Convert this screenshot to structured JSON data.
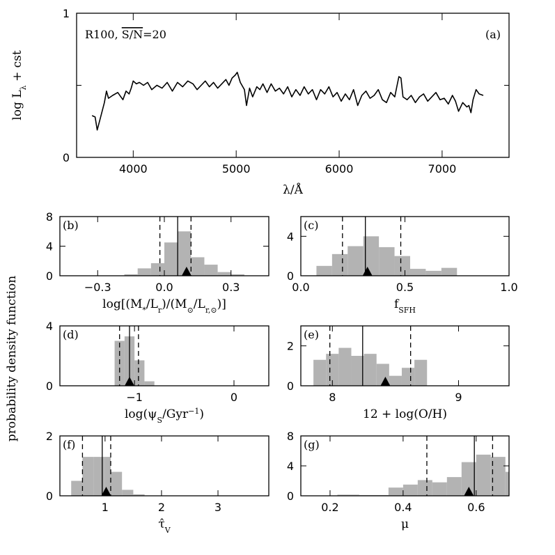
{
  "chart_data": [
    {
      "id": "a",
      "type": "line",
      "label": "(a)",
      "annotation": "R100, S/N=20",
      "annotation_prefix": "R100, ",
      "annotation_overlined": "S/N",
      "annotation_suffix": "=20",
      "xlabel": "λ/Å",
      "ylabel": "log L",
      "ylabel_subscript": "λ",
      "ylabel_suffix": " + cst",
      "xlim": [
        3450,
        7650
      ],
      "ylim": [
        0,
        1
      ],
      "xticks": [
        4000,
        5000,
        6000,
        7000
      ],
      "yticks": [
        0,
        1
      ],
      "yticks_minor": [
        0.5
      ],
      "x": [
        3600,
        3630,
        3650,
        3680,
        3720,
        3740,
        3760,
        3800,
        3850,
        3900,
        3930,
        3960,
        3980,
        4000,
        4030,
        4060,
        4100,
        4140,
        4180,
        4230,
        4280,
        4330,
        4380,
        4430,
        4480,
        4530,
        4580,
        4620,
        4660,
        4700,
        4740,
        4780,
        4820,
        4860,
        4900,
        4930,
        4960,
        4990,
        5010,
        5040,
        5080,
        5100,
        5130,
        5160,
        5200,
        5230,
        5260,
        5300,
        5340,
        5380,
        5420,
        5460,
        5500,
        5540,
        5580,
        5620,
        5660,
        5700,
        5740,
        5780,
        5820,
        5860,
        5900,
        5940,
        5980,
        6020,
        6060,
        6100,
        6140,
        6180,
        6220,
        6260,
        6300,
        6340,
        6380,
        6420,
        6460,
        6500,
        6540,
        6560,
        6580,
        6600,
        6620,
        6660,
        6700,
        6740,
        6780,
        6820,
        6860,
        6900,
        6940,
        6980,
        7020,
        7060,
        7100,
        7130,
        7160,
        7200,
        7240,
        7260,
        7280,
        7300,
        7330,
        7360,
        7400
      ],
      "y": [
        0.29,
        0.28,
        0.19,
        0.27,
        0.38,
        0.46,
        0.41,
        0.43,
        0.45,
        0.4,
        0.46,
        0.44,
        0.48,
        0.53,
        0.51,
        0.52,
        0.5,
        0.52,
        0.47,
        0.5,
        0.48,
        0.52,
        0.46,
        0.52,
        0.49,
        0.53,
        0.51,
        0.47,
        0.5,
        0.53,
        0.49,
        0.52,
        0.48,
        0.51,
        0.54,
        0.5,
        0.55,
        0.57,
        0.59,
        0.52,
        0.47,
        0.36,
        0.48,
        0.42,
        0.49,
        0.47,
        0.51,
        0.45,
        0.51,
        0.46,
        0.48,
        0.44,
        0.49,
        0.42,
        0.47,
        0.43,
        0.49,
        0.44,
        0.47,
        0.4,
        0.47,
        0.44,
        0.49,
        0.42,
        0.45,
        0.39,
        0.44,
        0.4,
        0.47,
        0.36,
        0.43,
        0.46,
        0.41,
        0.43,
        0.47,
        0.4,
        0.38,
        0.45,
        0.42,
        0.49,
        0.56,
        0.55,
        0.42,
        0.4,
        0.43,
        0.38,
        0.42,
        0.44,
        0.39,
        0.42,
        0.45,
        0.4,
        0.41,
        0.37,
        0.43,
        0.39,
        0.32,
        0.38,
        0.35,
        0.36,
        0.31,
        0.4,
        0.47,
        0.44,
        0.43
      ]
    },
    {
      "id": "b",
      "type": "bar",
      "label": "(b)",
      "xlabel": "log[(M*/Lr)/(M⊙/Lr,⊙)]",
      "xlabel_parts": {
        "pre": "log[(M",
        "sub1": "*",
        "mid1": "/L",
        "sub2": "r",
        "mid2": ")/(M",
        "sub3": "⊙",
        "mid3": "/L",
        "sub4": "r,⊙",
        "post": ")]"
      },
      "xlim": [
        -0.47,
        0.47
      ],
      "ylim": [
        0,
        8
      ],
      "xticks": [
        -0.3,
        0.0,
        0.3
      ],
      "xticklabels": [
        "−0.3",
        "0.0",
        "0.3"
      ],
      "yticks": [
        0,
        4,
        8
      ],
      "bin_edges": [
        -0.18,
        -0.12,
        -0.06,
        0.0,
        0.06,
        0.12,
        0.18,
        0.24,
        0.3,
        0.36
      ],
      "values": [
        0.2,
        1.0,
        1.7,
        4.5,
        6.0,
        2.5,
        1.5,
        0.5,
        0.2
      ],
      "median": 0.06,
      "percentile_lines": [
        -0.02,
        0.12
      ],
      "input_value": 0.1
    },
    {
      "id": "c",
      "type": "bar",
      "label": "(c)",
      "xlabel": "fSFH",
      "xlabel_main": "f",
      "xlabel_sub": "SFH",
      "xlim": [
        0,
        1
      ],
      "ylim": [
        0,
        6
      ],
      "xticks": [
        0.0,
        0.5,
        1.0
      ],
      "xticklabels": [
        "0.0",
        "0.5",
        "1.0"
      ],
      "yticks": [
        0,
        4
      ],
      "bin_edges": [
        0.075,
        0.15,
        0.225,
        0.3,
        0.375,
        0.45,
        0.525,
        0.6,
        0.675,
        0.75
      ],
      "values": [
        1.0,
        2.2,
        3.0,
        4.0,
        2.9,
        2.0,
        0.7,
        0.5,
        0.8
      ],
      "median": 0.31,
      "percentile_lines": [
        0.2,
        0.48
      ],
      "input_value": 0.32
    },
    {
      "id": "d",
      "type": "bar",
      "label": "(d)",
      "xlabel": "log(ψS/Gyr⁻¹)",
      "xlabel_parts": {
        "pre": "log(ψ",
        "sub": "S",
        "mid": "/Gyr",
        "sup": "−1",
        "post": ")"
      },
      "xlim": [
        -1.75,
        0.35
      ],
      "ylim": [
        0,
        4
      ],
      "xticks": [
        -1,
        0
      ],
      "xticklabels": [
        "−1",
        "0"
      ],
      "yticks": [
        0,
        4
      ],
      "bin_edges": [
        -1.2,
        -1.1,
        -1.0,
        -0.9,
        -0.8
      ],
      "values": [
        3.0,
        3.3,
        1.7,
        0.3
      ],
      "median": -1.05,
      "percentile_lines": [
        -1.15,
        -0.96
      ],
      "input_value": -1.05
    },
    {
      "id": "e",
      "type": "bar",
      "label": "(e)",
      "xlabel": "12 + log(O/H)",
      "xlim": [
        7.75,
        9.4
      ],
      "ylim": [
        0,
        3
      ],
      "xticks": [
        8,
        9
      ],
      "xticklabels": [
        "8",
        "9"
      ],
      "yticks": [
        0,
        2
      ],
      "bin_edges": [
        7.85,
        7.95,
        8.05,
        8.15,
        8.25,
        8.35,
        8.45,
        8.55,
        8.65,
        8.75
      ],
      "values": [
        1.3,
        1.6,
        1.9,
        1.5,
        1.6,
        1.1,
        0.5,
        0.9,
        1.3
      ],
      "median": 8.24,
      "percentile_lines": [
        7.98,
        8.62
      ],
      "input_value": 8.42
    },
    {
      "id": "f",
      "type": "bar",
      "label": "(f)",
      "xlabel": "τ̂V",
      "xlabel_main": "τ̂",
      "xlabel_sub": "V",
      "xlim": [
        0.2,
        3.9
      ],
      "ylim": [
        0,
        2
      ],
      "xticks": [
        1,
        2,
        3
      ],
      "xticklabels": [
        "1",
        "2",
        "3"
      ],
      "yticks": [
        0,
        2
      ],
      "bin_edges": [
        0.4,
        0.6,
        0.8,
        1.0,
        1.1,
        1.3,
        1.5,
        1.7
      ],
      "values": [
        0.5,
        1.3,
        1.3,
        1.3,
        0.8,
        0.2,
        0.05
      ],
      "median": 0.95,
      "percentile_lines": [
        0.6,
        1.1
      ],
      "input_value": 1.02
    },
    {
      "id": "g",
      "type": "bar",
      "label": "(g)",
      "xlabel": "μ",
      "xlim": [
        0.12,
        0.69
      ],
      "ylim": [
        0,
        8
      ],
      "xticks": [
        0.2,
        0.4,
        0.6
      ],
      "xticklabels": [
        "0.2",
        "0.4",
        "0.6"
      ],
      "yticks": [
        0,
        4,
        8
      ],
      "bin_edges": [
        0.22,
        0.28,
        0.36,
        0.4,
        0.44,
        0.48,
        0.52,
        0.56,
        0.6,
        0.64,
        0.68,
        0.69
      ],
      "values": [
        0.15,
        0.1,
        1.1,
        1.5,
        2.1,
        1.8,
        2.5,
        4.5,
        5.5,
        5.2,
        3.2
      ],
      "median": 0.595,
      "percentile_lines": [
        0.465,
        0.645
      ],
      "input_value": 0.58
    }
  ],
  "figure": {
    "shared_ylabel": "probability density function"
  }
}
